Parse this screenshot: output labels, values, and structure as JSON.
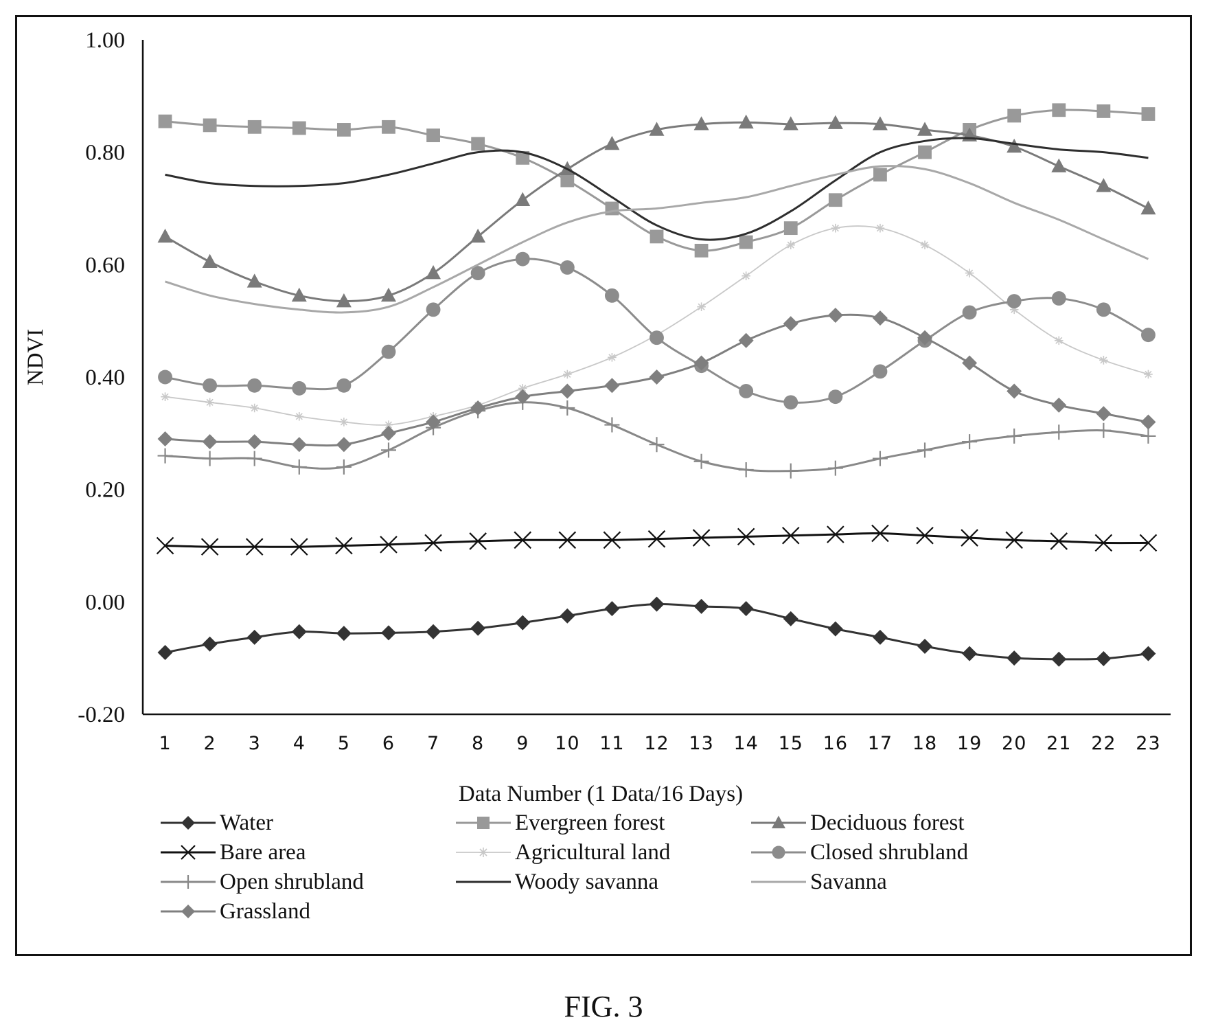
{
  "figure": {
    "caption": "FIG. 3"
  },
  "chart_data": {
    "type": "line",
    "title": "",
    "xlabel": "Data Number (1 Data/16 Days)",
    "ylabel": "NDVI",
    "ylim": [
      -0.2,
      1.0
    ],
    "yticks": [
      "-0.20",
      "0.00",
      "0.20",
      "0.40",
      "0.60",
      "0.80",
      "1.00"
    ],
    "x": [
      1,
      2,
      3,
      4,
      5,
      6,
      7,
      8,
      9,
      10,
      11,
      12,
      13,
      14,
      15,
      16,
      17,
      18,
      19,
      20,
      21,
      22,
      23
    ],
    "grid": false,
    "legend_position": "bottom",
    "series": [
      {
        "name": "Water",
        "marker": "diamond",
        "color": "#333333",
        "dash": "",
        "values": [
          -0.09,
          -0.075,
          -0.063,
          -0.053,
          -0.056,
          -0.055,
          -0.053,
          -0.047,
          -0.037,
          -0.025,
          -0.012,
          -0.004,
          -0.008,
          -0.012,
          -0.03,
          -0.048,
          -0.063,
          -0.079,
          -0.092,
          -0.1,
          -0.102,
          -0.101,
          -0.092
        ]
      },
      {
        "name": "Evergreen forest",
        "marker": "square",
        "color": "#999999",
        "dash": "",
        "values": [
          0.855,
          0.848,
          0.845,
          0.843,
          0.84,
          0.845,
          0.83,
          0.815,
          0.79,
          0.75,
          0.7,
          0.65,
          0.625,
          0.64,
          0.665,
          0.715,
          0.76,
          0.8,
          0.84,
          0.865,
          0.875,
          0.873,
          0.868
        ]
      },
      {
        "name": "Deciduous forest",
        "marker": "triangle",
        "color": "#7a7a7a",
        "dash": "",
        "values": [
          0.65,
          0.605,
          0.57,
          0.545,
          0.535,
          0.545,
          0.585,
          0.65,
          0.715,
          0.77,
          0.815,
          0.84,
          0.85,
          0.853,
          0.85,
          0.852,
          0.85,
          0.84,
          0.83,
          0.81,
          0.775,
          0.74,
          0.7
        ]
      },
      {
        "name": "Bare area",
        "marker": "x",
        "color": "#111111",
        "dash": "",
        "values": [
          0.1,
          0.098,
          0.098,
          0.098,
          0.1,
          0.102,
          0.105,
          0.108,
          0.11,
          0.11,
          0.11,
          0.112,
          0.114,
          0.116,
          0.118,
          0.12,
          0.122,
          0.118,
          0.114,
          0.11,
          0.108,
          0.105,
          0.105
        ]
      },
      {
        "name": "Agricultural land",
        "marker": "star",
        "color": "#c8c8c8",
        "dash": "",
        "values": [
          0.365,
          0.355,
          0.345,
          0.33,
          0.32,
          0.315,
          0.33,
          0.35,
          0.38,
          0.405,
          0.435,
          0.475,
          0.525,
          0.58,
          0.635,
          0.665,
          0.665,
          0.635,
          0.585,
          0.52,
          0.465,
          0.43,
          0.405
        ]
      },
      {
        "name": "Closed shrubland",
        "marker": "circle",
        "color": "#8c8c8c",
        "dash": "",
        "values": [
          0.4,
          0.385,
          0.385,
          0.38,
          0.385,
          0.445,
          0.52,
          0.585,
          0.61,
          0.595,
          0.545,
          0.47,
          0.42,
          0.375,
          0.355,
          0.365,
          0.41,
          0.465,
          0.515,
          0.535,
          0.54,
          0.52,
          0.475
        ]
      },
      {
        "name": "Open shrubland",
        "marker": "plus",
        "color": "#888888",
        "dash": "",
        "values": [
          0.26,
          0.255,
          0.255,
          0.24,
          0.24,
          0.27,
          0.31,
          0.34,
          0.355,
          0.345,
          0.315,
          0.28,
          0.25,
          0.235,
          0.233,
          0.238,
          0.255,
          0.27,
          0.285,
          0.295,
          0.302,
          0.305,
          0.295
        ]
      },
      {
        "name": "Woody savanna",
        "marker": "none",
        "color": "#2e2e2e",
        "dash": "",
        "values": [
          0.76,
          0.745,
          0.74,
          0.74,
          0.745,
          0.76,
          0.78,
          0.8,
          0.8,
          0.77,
          0.72,
          0.67,
          0.645,
          0.655,
          0.695,
          0.75,
          0.8,
          0.82,
          0.825,
          0.815,
          0.805,
          0.8,
          0.79
        ]
      },
      {
        "name": "Savanna",
        "marker": "none",
        "color": "#a8a8a8",
        "dash": "",
        "values": [
          0.57,
          0.545,
          0.53,
          0.52,
          0.515,
          0.525,
          0.56,
          0.6,
          0.64,
          0.675,
          0.695,
          0.7,
          0.71,
          0.72,
          0.74,
          0.76,
          0.775,
          0.77,
          0.745,
          0.71,
          0.68,
          0.645,
          0.61
        ]
      },
      {
        "name": "Grassland",
        "marker": "diamond",
        "color": "#7f7f7f",
        "dash": "",
        "values": [
          0.29,
          0.285,
          0.285,
          0.28,
          0.28,
          0.3,
          0.32,
          0.345,
          0.365,
          0.375,
          0.385,
          0.4,
          0.425,
          0.465,
          0.495,
          0.51,
          0.505,
          0.47,
          0.425,
          0.375,
          0.35,
          0.335,
          0.32
        ]
      }
    ]
  }
}
